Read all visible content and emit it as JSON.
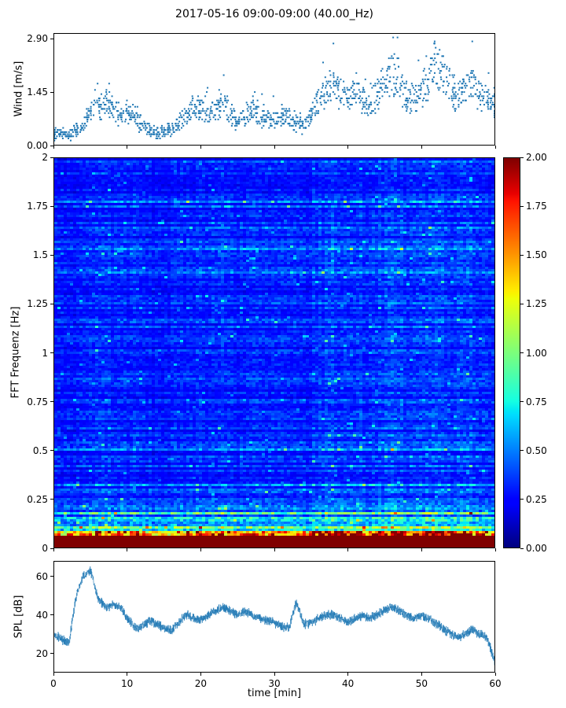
{
  "title": "2017-05-16 09:00-09:00 (40.00_Hz)",
  "accent_color": "#1f77b4",
  "chart_data": [
    {
      "id": "wind",
      "type": "scatter",
      "ylabel": "Wind [m/s]",
      "ylim": [
        0,
        3.05
      ],
      "yticks": [
        0.0,
        1.45,
        2.9
      ],
      "ytick_labels": [
        "0.00",
        "1.45",
        "2.90"
      ],
      "xlim": [
        0,
        60
      ],
      "xticks": [
        0,
        10,
        20,
        30,
        40,
        50,
        60
      ],
      "marker_color": "#1f77b4",
      "x_minutes": [
        0,
        1,
        2,
        3,
        4,
        5,
        6,
        7,
        8,
        9,
        10,
        11,
        12,
        13,
        14,
        15,
        16,
        17,
        18,
        19,
        20,
        21,
        22,
        23,
        24,
        25,
        26,
        27,
        28,
        29,
        30,
        31,
        32,
        33,
        34,
        35,
        36,
        37,
        38,
        39,
        40,
        41,
        42,
        43,
        44,
        45,
        46,
        47,
        48,
        49,
        50,
        51,
        52,
        53,
        54,
        55,
        56,
        57,
        58,
        59,
        60
      ],
      "mean_wind": [
        0.3,
        0.32,
        0.28,
        0.38,
        0.5,
        0.85,
        1.05,
        1.25,
        0.95,
        0.8,
        0.9,
        0.75,
        0.5,
        0.4,
        0.35,
        0.35,
        0.42,
        0.55,
        0.9,
        1.0,
        1.0,
        0.9,
        1.0,
        1.1,
        0.9,
        0.6,
        0.8,
        1.0,
        0.8,
        0.7,
        0.7,
        0.8,
        0.7,
        0.6,
        0.5,
        0.8,
        1.2,
        1.5,
        1.7,
        1.4,
        1.2,
        1.5,
        1.3,
        1.1,
        1.4,
        1.6,
        2.0,
        1.8,
        1.3,
        1.2,
        1.4,
        1.8,
        2.35,
        1.9,
        1.5,
        1.3,
        1.5,
        1.7,
        1.4,
        1.2,
        1.1
      ]
    },
    {
      "id": "spectrogram",
      "type": "heatmap",
      "ylabel": "FFT Frequenz [Hz]",
      "ylim": [
        0,
        2
      ],
      "yticks": [
        0,
        0.25,
        0.5,
        0.75,
        1,
        1.25,
        1.5,
        1.75,
        2
      ],
      "ytick_labels": [
        "0",
        "0.25",
        "0.5",
        "0.75",
        "1",
        "1.25",
        "1.5",
        "1.75",
        "2"
      ],
      "xlim": [
        0,
        60
      ],
      "xticks": [
        0,
        10,
        20,
        30,
        40,
        50,
        60
      ],
      "colormap": "jet",
      "vmin": 0,
      "vmax": 2,
      "colorbar_tick_values": [
        0,
        0.25,
        0.5,
        0.75,
        1,
        1.25,
        1.5,
        1.75,
        2
      ],
      "colorbar_tick_labels": [
        "0.00",
        "0.25",
        "0.50",
        "0.75",
        "1.00",
        "1.25",
        "1.50",
        "1.75",
        "2.00"
      ],
      "description": "Low frequencies below 0.25 Hz show high energy (green/yellow/red), bottom rows saturated dark red; upper region mostly dark blue with horizontal striping and cyan speckles; brighter columns correlate with higher wind speed."
    },
    {
      "id": "spl",
      "type": "line",
      "ylabel": "SPL [dB]",
      "xlabel": "time [min]",
      "ylim": [
        10,
        68
      ],
      "yticks": [
        20,
        40,
        60
      ],
      "ytick_labels": [
        "20",
        "40",
        "60"
      ],
      "xlim": [
        0,
        60
      ],
      "xticks": [
        0,
        10,
        20,
        30,
        40,
        50,
        60
      ],
      "xtick_labels": [
        "0",
        "10",
        "20",
        "30",
        "40",
        "50",
        "60"
      ],
      "line_color": "#1f77b4",
      "x_minutes": [
        0,
        1,
        2,
        3,
        4,
        5,
        6,
        7,
        8,
        9,
        10,
        11,
        12,
        13,
        14,
        15,
        16,
        17,
        18,
        19,
        20,
        21,
        22,
        23,
        24,
        25,
        26,
        27,
        28,
        29,
        30,
        31,
        32,
        33,
        34,
        35,
        36,
        37,
        38,
        39,
        40,
        41,
        42,
        43,
        44,
        45,
        46,
        47,
        48,
        49,
        50,
        51,
        52,
        53,
        54,
        55,
        56,
        57,
        58,
        59,
        60
      ],
      "spl_db": [
        30,
        27,
        25,
        50,
        61,
        63,
        48,
        44,
        45,
        44,
        38,
        33,
        34,
        37,
        35,
        33,
        32,
        36,
        40,
        38,
        37,
        40,
        42,
        44,
        42,
        40,
        42,
        40,
        38,
        37,
        36,
        34,
        33,
        47,
        35,
        36,
        38,
        40,
        40,
        38,
        36,
        38,
        40,
        38,
        40,
        42,
        44,
        42,
        40,
        38,
        40,
        38,
        35,
        33,
        30,
        28,
        30,
        32,
        30,
        28,
        16
      ]
    }
  ]
}
